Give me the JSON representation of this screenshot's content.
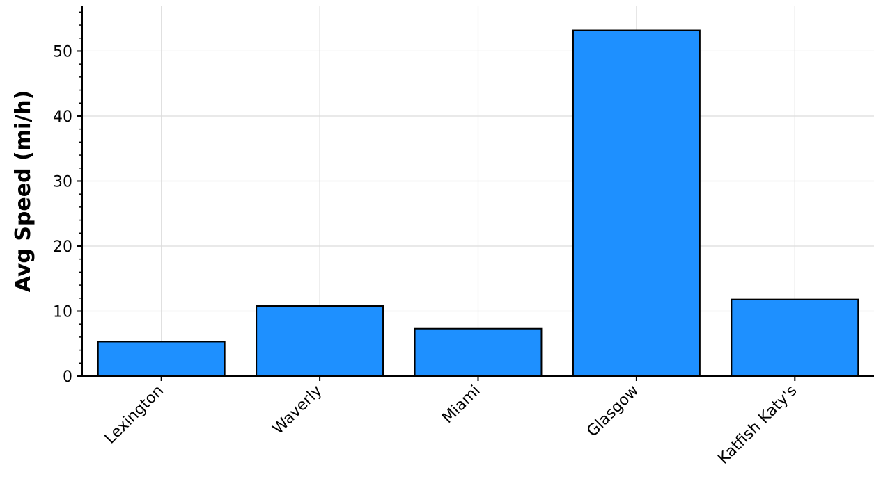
{
  "chart_data": {
    "type": "bar",
    "categories": [
      "Lexington",
      "Waverly",
      "Miami",
      "Glasgow",
      "Katfish Katy's"
    ],
    "values": [
      5.3,
      10.8,
      7.3,
      53.2,
      11.8
    ],
    "title": "",
    "xlabel": "",
    "ylabel": "Avg Speed (mi/h)",
    "ylim": [
      0,
      57
    ],
    "yticks": [
      0,
      10,
      20,
      30,
      40,
      50
    ],
    "grid": true,
    "bar_color": "#1e90ff",
    "edge_color": "#000000"
  }
}
